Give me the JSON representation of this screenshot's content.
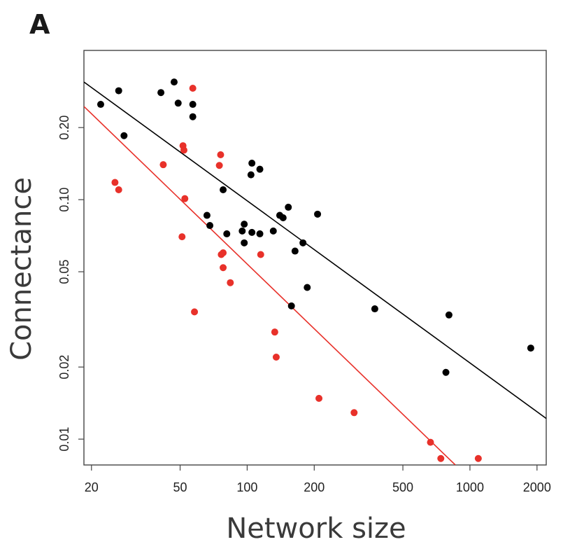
{
  "chart_data": {
    "type": "scatter",
    "panel_label": "A",
    "title": "",
    "xlabel": "Network size",
    "ylabel": "Connectance",
    "x_scale": "log",
    "y_scale": "log",
    "xlim": [
      18.5,
      2200
    ],
    "ylim": [
      0.0078,
      0.42
    ],
    "x_ticks": [
      {
        "value": 20,
        "label": "20"
      },
      {
        "value": 50,
        "label": "50"
      },
      {
        "value": 100,
        "label": "100"
      },
      {
        "value": 200,
        "label": "200"
      },
      {
        "value": 500,
        "label": "500"
      },
      {
        "value": 1000,
        "label": "1000"
      },
      {
        "value": 2000,
        "label": "2000"
      }
    ],
    "y_ticks": [
      {
        "value": 0.01,
        "label": "0.01"
      },
      {
        "value": 0.02,
        "label": "0.02"
      },
      {
        "value": 0.05,
        "label": "0.05"
      },
      {
        "value": 0.1,
        "label": "0.10"
      },
      {
        "value": 0.2,
        "label": "0.20"
      }
    ],
    "grid": false,
    "legend": "none",
    "series": [
      {
        "color": "#000000",
        "points": [
          [
            22,
            0.25
          ],
          [
            26.5,
            0.285
          ],
          [
            28,
            0.185
          ],
          [
            41,
            0.28
          ],
          [
            47,
            0.31
          ],
          [
            49,
            0.253
          ],
          [
            57,
            0.25
          ],
          [
            57,
            0.222
          ],
          [
            66,
            0.086
          ],
          [
            68,
            0.078
          ],
          [
            78,
            0.11
          ],
          [
            81,
            0.072
          ],
          [
            95,
            0.074
          ],
          [
            97,
            0.079
          ],
          [
            97,
            0.066
          ],
          [
            104,
            0.127
          ],
          [
            105,
            0.142
          ],
          [
            105,
            0.073
          ],
          [
            114,
            0.134
          ],
          [
            114,
            0.072
          ],
          [
            131,
            0.074
          ],
          [
            140,
            0.086
          ],
          [
            145,
            0.084
          ],
          [
            153,
            0.093
          ],
          [
            158,
            0.036
          ],
          [
            164,
            0.061
          ],
          [
            178,
            0.066
          ],
          [
            186,
            0.043
          ],
          [
            207,
            0.087
          ],
          [
            374,
            0.035
          ],
          [
            780,
            0.019
          ],
          [
            805,
            0.033
          ],
          [
            1875,
            0.024
          ]
        ],
        "fit": {
          "x": [
            18.5,
            2200
          ],
          "y": [
            0.31,
            0.0122
          ]
        }
      },
      {
        "color": "#e8312a",
        "points": [
          [
            25.5,
            0.118
          ],
          [
            26.5,
            0.11
          ],
          [
            42,
            0.14
          ],
          [
            51,
            0.07
          ],
          [
            51.5,
            0.168
          ],
          [
            52,
            0.161
          ],
          [
            52.5,
            0.101
          ],
          [
            57,
            0.292
          ],
          [
            58,
            0.034
          ],
          [
            75,
            0.139
          ],
          [
            76,
            0.154
          ],
          [
            76.5,
            0.059
          ],
          [
            78,
            0.06
          ],
          [
            78,
            0.052
          ],
          [
            84,
            0.045
          ],
          [
            133,
            0.028
          ],
          [
            135,
            0.022
          ],
          [
            115,
            0.059
          ],
          [
            210,
            0.0148
          ],
          [
            302,
            0.0129
          ],
          [
            665,
            0.0097
          ],
          [
            740,
            0.0083
          ],
          [
            1090,
            0.0083
          ]
        ],
        "fit": {
          "x": [
            18.5,
            860
          ],
          "y": [
            0.245,
            0.0078
          ]
        }
      }
    ]
  }
}
